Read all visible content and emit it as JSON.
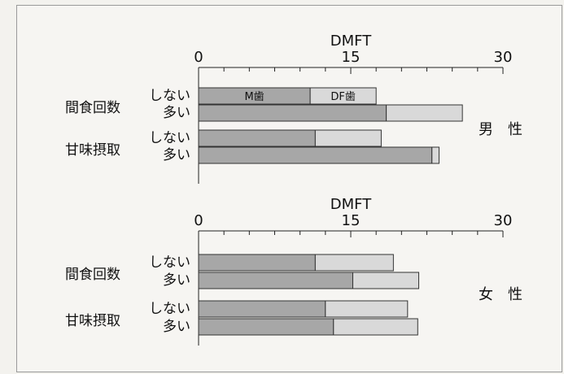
{
  "chart_data": [
    {
      "type": "bar",
      "stacked": true,
      "orientation": "horizontal",
      "xlabel": "DMFT",
      "xlim": [
        0,
        30
      ],
      "x_tick_labels": [
        "0",
        "15",
        "30"
      ],
      "side_label": "男 性",
      "groups": [
        {
          "label": "間食回数",
          "rows": [
            {
              "label": "しない",
              "m": 11,
              "df": 6.5
            },
            {
              "label": "多い",
              "m": 18.5,
              "df": 7.5
            }
          ]
        },
        {
          "label": "甘味摂取",
          "rows": [
            {
              "label": "しない",
              "m": 11.5,
              "df": 6.5
            },
            {
              "label": "多い",
              "m": 23,
              "df": 0.7
            }
          ]
        }
      ],
      "series": [
        {
          "name": "M歯",
          "color": "#a7a7a7"
        },
        {
          "name": "DF歯",
          "color": "#d9d9d9"
        }
      ]
    },
    {
      "type": "bar",
      "stacked": true,
      "orientation": "horizontal",
      "xlabel": "DMFT",
      "xlim": [
        0,
        30
      ],
      "x_tick_labels": [
        "0",
        "15",
        "30"
      ],
      "side_label": "女 性",
      "groups": [
        {
          "label": "間食回数",
          "rows": [
            {
              "label": "しない",
              "m": 11.5,
              "df": 7.7
            },
            {
              "label": "多い",
              "m": 15.2,
              "df": 6.5
            }
          ]
        },
        {
          "label": "甘味摂取",
          "rows": [
            {
              "label": "しない",
              "m": 12.5,
              "df": 8.1
            },
            {
              "label": "多い",
              "m": 13.3,
              "df": 8.3
            }
          ]
        }
      ],
      "series": [
        {
          "name": "M歯",
          "color": "#a7a7a7"
        },
        {
          "name": "DF歯",
          "color": "#d9d9d9"
        }
      ]
    }
  ]
}
